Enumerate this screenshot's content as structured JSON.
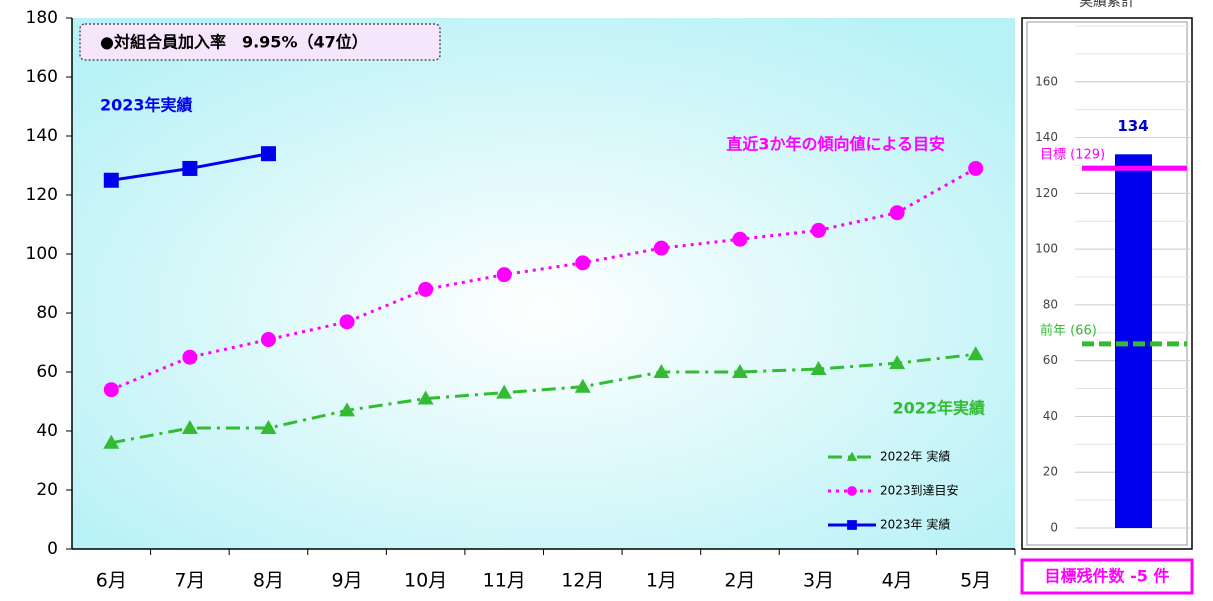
{
  "chart_data": [
    {
      "type": "line",
      "categories": [
        "6月",
        "7月",
        "8月",
        "9月",
        "10月",
        "11月",
        "12月",
        "1月",
        "2月",
        "3月",
        "4月",
        "5月"
      ],
      "series": [
        {
          "name": "2022年 実績",
          "color": "#33bb33",
          "marker": "triangle",
          "dash": "14 6 3 6",
          "values": [
            36,
            41,
            41,
            47,
            51,
            53,
            55,
            60,
            60,
            61,
            63,
            66
          ]
        },
        {
          "name": "2023到達目安",
          "color": "#ff00ff",
          "marker": "circle",
          "dash": "3 5",
          "values": [
            54,
            65,
            71,
            77,
            88,
            93,
            97,
            102,
            105,
            108,
            114,
            129
          ]
        },
        {
          "name": "2023年 実績",
          "color": "#0000ee",
          "marker": "square",
          "dash": "",
          "values": [
            125,
            129,
            134,
            null,
            null,
            null,
            null,
            null,
            null,
            null,
            null,
            null
          ]
        }
      ],
      "ylim": [
        0,
        180
      ],
      "yticks": [
        0,
        20,
        40,
        60,
        80,
        100,
        120,
        140,
        160,
        180
      ],
      "legend": "lower right",
      "note": "●対組合員加入率　9.95%（47位）",
      "annotations": [
        {
          "text": "2023年実績",
          "color": "#0000ee"
        },
        {
          "text": "直近3か年の傾向値による目安",
          "color": "#ff00ff"
        },
        {
          "text": "2022年実績",
          "color": "#33bb33"
        }
      ]
    },
    {
      "type": "bar",
      "title": "実績累計",
      "values": [
        134
      ],
      "color": "#0000ee",
      "ylim": [
        0,
        180
      ],
      "yticks": [
        0,
        20,
        40,
        60,
        80,
        100,
        120,
        140,
        160
      ],
      "ref_lines": [
        {
          "label": "目標 (129)",
          "value": 129,
          "color": "#ff00ff",
          "dash": ""
        },
        {
          "label": "前年 (66)",
          "value": 66,
          "color": "#33bb33",
          "dash": "12 5"
        }
      ],
      "footer": "目標残件数 -5 件"
    }
  ]
}
